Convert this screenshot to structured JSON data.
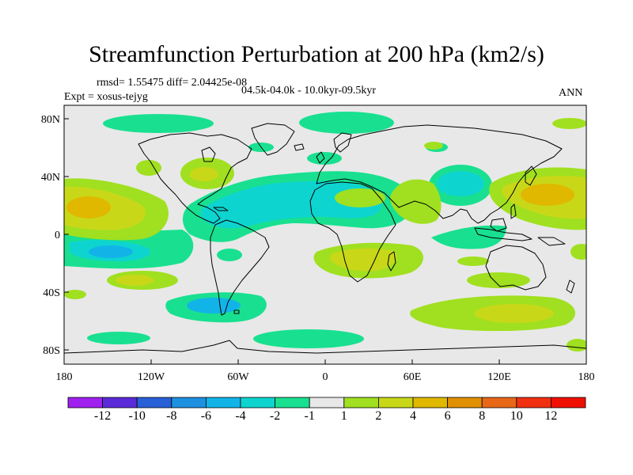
{
  "title": "Streamfunction Perturbation at 200 hPa (km2/s)",
  "stats_line": "rmsd= 1.55475 diff= 2.04425e-08",
  "experiment_label": "Expt = xosus-tejyg",
  "period_label": "04.5k-04.0k - 10.0kyr-09.5kyr",
  "season_label": "ANN",
  "axes": {
    "lon_ticks": [
      "180",
      "120W",
      "60W",
      "0",
      "60E",
      "120E",
      "180"
    ],
    "lat_ticks": [
      "80N",
      "40N",
      "0",
      "40S",
      "80S"
    ]
  },
  "colorbar": {
    "labels": [
      "-12",
      "-10",
      "-8",
      "-6",
      "-4",
      "-2",
      "-1",
      "1",
      "2",
      "4",
      "6",
      "8",
      "10",
      "12"
    ],
    "colors": [
      "#a020f0",
      "#5a2ad8",
      "#2860d8",
      "#1e90e0",
      "#12b4e8",
      "#0ed4d0",
      "#18e090",
      "#e8e8e8",
      "#a0e020",
      "#c8d818",
      "#e0b800",
      "#e09000",
      "#e86818",
      "#f03010",
      "#f01000"
    ]
  },
  "colors": {
    "land_outline": "#000000",
    "background_field": "#e8e8e8"
  }
}
